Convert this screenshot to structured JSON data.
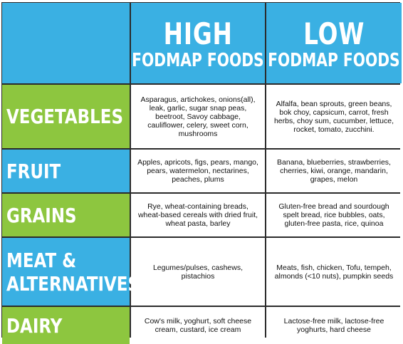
{
  "header": {
    "high": {
      "big": "HIGH",
      "small": "FODMAP FOODS"
    },
    "low": {
      "big": "LOW",
      "small": "FODMAP FOODS"
    }
  },
  "colors": {
    "header_blue": "#3ab0e3",
    "vegetables_green": "#8dc63f",
    "grains_green": "#8dc63f",
    "dairy_green": "#8dc63f",
    "fruit_blue": "#3ab0e3",
    "meat_blue": "#3ab0e3"
  },
  "rows": [
    {
      "label": "VEGETABLES",
      "high": "Asparagus, artichokes, onions(all), leak, garlic, sugar snap peas, beetroot, Savoy cabbage, cauliflower, celery, sweet corn, mushrooms",
      "low": "Alfalfa, bean sprouts, green beans, bok choy, capsicum, carrot, fresh herbs, choy sum, cucumber, lettuce, rocket, tomato, zucchini."
    },
    {
      "label": "FRUIT",
      "high": "Apples, apricots, figs, pears, mango, pears, watermelon, nectarines, peaches, plums",
      "low": "Banana, blueberries, strawberries, cherries, kiwi, orange, mandarin, grapes, melon"
    },
    {
      "label": "GRAINS",
      "high": "Rye, wheat-containing breads, wheat-based cereals with dried fruit, wheat pasta, barley",
      "low": "Gluten-free bread and sourdough spelt bread, rice bubbles, oats, gluten-free pasta, rice, quinoa"
    },
    {
      "label": "MEAT &\nALTERNATIVES",
      "high": "Legumes/pulses, cashews, pistachios",
      "low": "Meats, fish, chicken, Tofu, tempeh, almonds (<10 nuts), pumpkin seeds"
    },
    {
      "label": "DAIRY",
      "high": "Cow's milk, yoghurt, soft cheese cream, custard, ice cream",
      "low": "Lactose-free milk, lactose-free yoghurts, hard cheese"
    }
  ]
}
